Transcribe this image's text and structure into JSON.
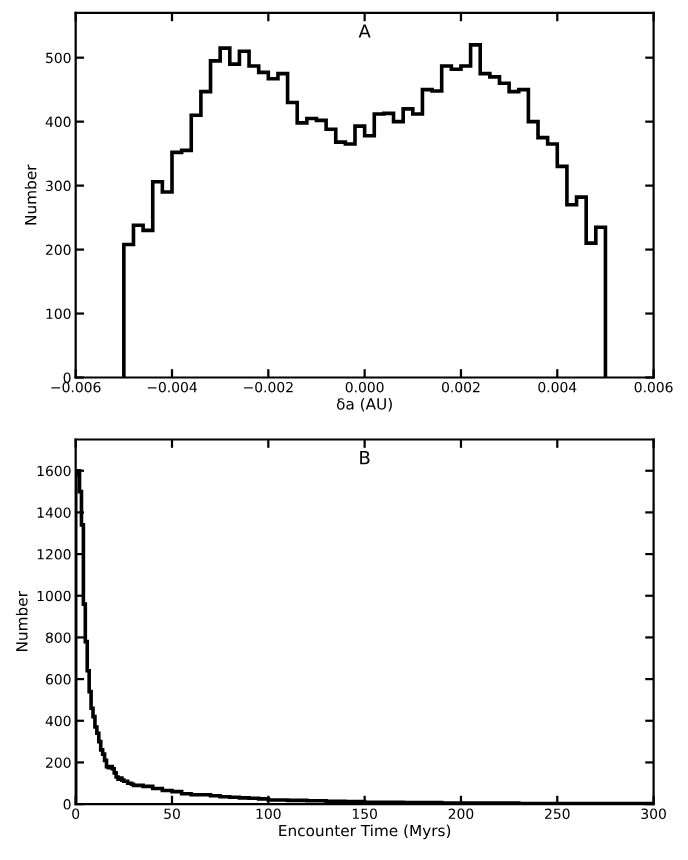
{
  "chart_data": [
    {
      "type": "histogram",
      "title": "A",
      "xlabel": "δa (AU)",
      "ylabel": "Number",
      "color": "#000000",
      "bins": [
        -0.005,
        -0.0048,
        -0.0046,
        -0.0044,
        -0.0042,
        -0.004,
        -0.0038,
        -0.0036,
        -0.0034,
        -0.0032,
        -0.003,
        -0.0028,
        -0.0026,
        -0.0024,
        -0.0022,
        -0.002,
        -0.0018,
        -0.0016,
        -0.0014,
        -0.0012,
        -0.001,
        -0.0008,
        -0.0006,
        -0.0004,
        -0.0002,
        0.0,
        0.0002,
        0.0004,
        0.0006,
        0.0008,
        0.001,
        0.0012,
        0.0014,
        0.0016,
        0.0018,
        0.002,
        0.0022,
        0.0024,
        0.0026,
        0.0028,
        0.003,
        0.0032,
        0.0034,
        0.0036,
        0.0038,
        0.004,
        0.0042,
        0.0044,
        0.0046,
        0.0048,
        0.005
      ],
      "values": [
        208,
        238,
        230,
        306,
        290,
        352,
        355,
        410,
        447,
        495,
        515,
        490,
        510,
        487,
        477,
        467,
        475,
        430,
        398,
        405,
        402,
        388,
        368,
        365,
        393,
        378,
        412,
        413,
        400,
        420,
        412,
        450,
        448,
        487,
        482,
        487,
        520,
        475,
        470,
        460,
        447,
        450,
        400,
        375,
        365,
        330,
        270,
        282,
        210,
        235
      ],
      "xlim": [
        -0.006,
        0.006
      ],
      "xticks": [
        {
          "value": -0.006,
          "label": "−0.006"
        },
        {
          "value": -0.004,
          "label": "−0.004"
        },
        {
          "value": -0.002,
          "label": "−0.002"
        },
        {
          "value": 0.0,
          "label": "0.000"
        },
        {
          "value": 0.002,
          "label": "0.002"
        },
        {
          "value": 0.004,
          "label": "0.004"
        },
        {
          "value": 0.006,
          "label": "0.006"
        }
      ],
      "ylim": [
        0,
        570
      ],
      "yticks": [
        0,
        100,
        200,
        300,
        400,
        500
      ],
      "grid": false,
      "legend": false
    },
    {
      "type": "histogram",
      "title": "B",
      "xlabel": "Encounter Time (Myrs)",
      "ylabel": "Number",
      "color": "#000000",
      "bins": [
        0,
        1,
        2,
        3,
        4,
        5,
        6,
        7,
        8,
        9,
        10,
        11,
        12,
        13,
        14,
        15,
        16,
        17,
        18,
        19,
        20,
        21,
        22,
        23,
        24,
        25,
        26,
        27,
        28,
        29,
        30,
        35,
        40,
        45,
        50,
        55,
        60,
        65,
        70,
        75,
        80,
        85,
        90,
        95,
        100,
        110,
        120,
        130,
        140,
        150,
        160,
        170,
        180,
        190,
        200,
        210,
        220,
        230,
        240,
        250,
        260,
        270,
        280,
        290,
        300
      ],
      "values": [
        1580,
        1600,
        1500,
        1340,
        960,
        780,
        640,
        540,
        460,
        420,
        370,
        340,
        300,
        260,
        240,
        210,
        180,
        175,
        180,
        170,
        150,
        130,
        120,
        125,
        115,
        110,
        110,
        100,
        100,
        95,
        90,
        85,
        75,
        65,
        60,
        50,
        45,
        45,
        40,
        35,
        33,
        30,
        28,
        25,
        20,
        18,
        16,
        14,
        12,
        10,
        9,
        8,
        7,
        6,
        6,
        5,
        5,
        4,
        4,
        4,
        3,
        3,
        3,
        3
      ],
      "xlim": [
        0,
        300
      ],
      "xticks": [
        0,
        50,
        100,
        150,
        200,
        250,
        300
      ],
      "ylim": [
        0,
        1750
      ],
      "yticks": [
        0,
        200,
        400,
        600,
        800,
        1000,
        1200,
        1400,
        1600
      ],
      "grid": false,
      "legend": false
    }
  ]
}
